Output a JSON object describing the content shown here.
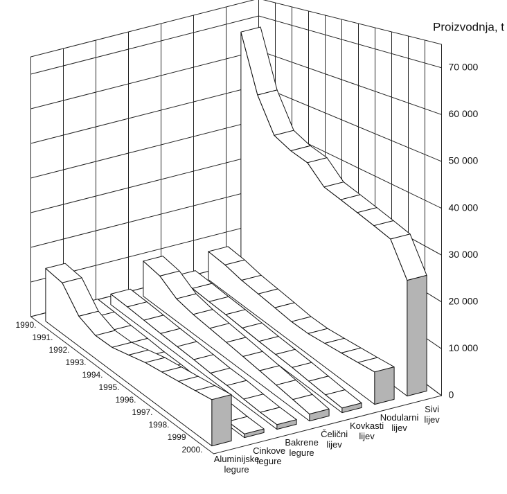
{
  "chart_data": {
    "type": "ribbon3d",
    "y_label": "Proizvodnja, t",
    "categories": [
      "1990.",
      "1991.",
      "1992.",
      "1993.",
      "1994.",
      "1995.",
      "1996.",
      "1997.",
      "1998.",
      "1999",
      "2000."
    ],
    "series": [
      {
        "name": "Aluminijske legure",
        "color": "#b4b4b4",
        "values": [
          15000,
          14000,
          8000,
          6000,
          6000,
          7000,
          8000,
          8500,
          9000,
          9500,
          10000
        ]
      },
      {
        "name": "Cinkove legure",
        "color": "#b4b4b4",
        "values": [
          2500,
          2300,
          2000,
          1800,
          1500,
          1500,
          1200,
          1200,
          1000,
          800,
          800
        ]
      },
      {
        "name": "Bakrene legure",
        "color": "#b4b4b4",
        "values": [
          3000,
          2800,
          2500,
          2200,
          2000,
          1800,
          1500,
          1500,
          1200,
          1000,
          1000
        ]
      },
      {
        "name": "Čelični lijev",
        "color": "#b4b4b4",
        "values": [
          10000,
          9000,
          6000,
          5000,
          4500,
          4000,
          3500,
          3000,
          2500,
          2000,
          1500
        ]
      },
      {
        "name": "Kovkasti lijev",
        "color": "#b4b4b4",
        "values": [
          3500,
          3300,
          3000,
          2800,
          2500,
          2200,
          2000,
          1800,
          1500,
          1200,
          1000
        ]
      },
      {
        "name": "Nodularni lijev",
        "color": "#b4b4b4",
        "values": [
          8000,
          7500,
          6500,
          6000,
          5500,
          5000,
          5000,
          5500,
          6000,
          6500,
          7000
        ]
      },
      {
        "name": "Sivi lijev",
        "color": "#b4b4b4",
        "values": [
          68000,
          52000,
          43000,
          41000,
          40000,
          36000,
          35000,
          34000,
          33000,
          32000,
          25000
        ]
      }
    ],
    "ylim": [
      0,
      75000
    ],
    "yticks": [
      0,
      {
        "value": 10000,
        "label": "10 000"
      },
      {
        "value": 20000,
        "label": "20 000"
      },
      {
        "value": 30000,
        "label": "30 000"
      },
      {
        "value": 40000,
        "label": "40 000"
      },
      {
        "value": 50000,
        "label": "50 000"
      },
      {
        "value": 60000,
        "label": "60 000"
      },
      {
        "value": 70000,
        "label": "70 000"
      }
    ],
    "grid": true
  }
}
